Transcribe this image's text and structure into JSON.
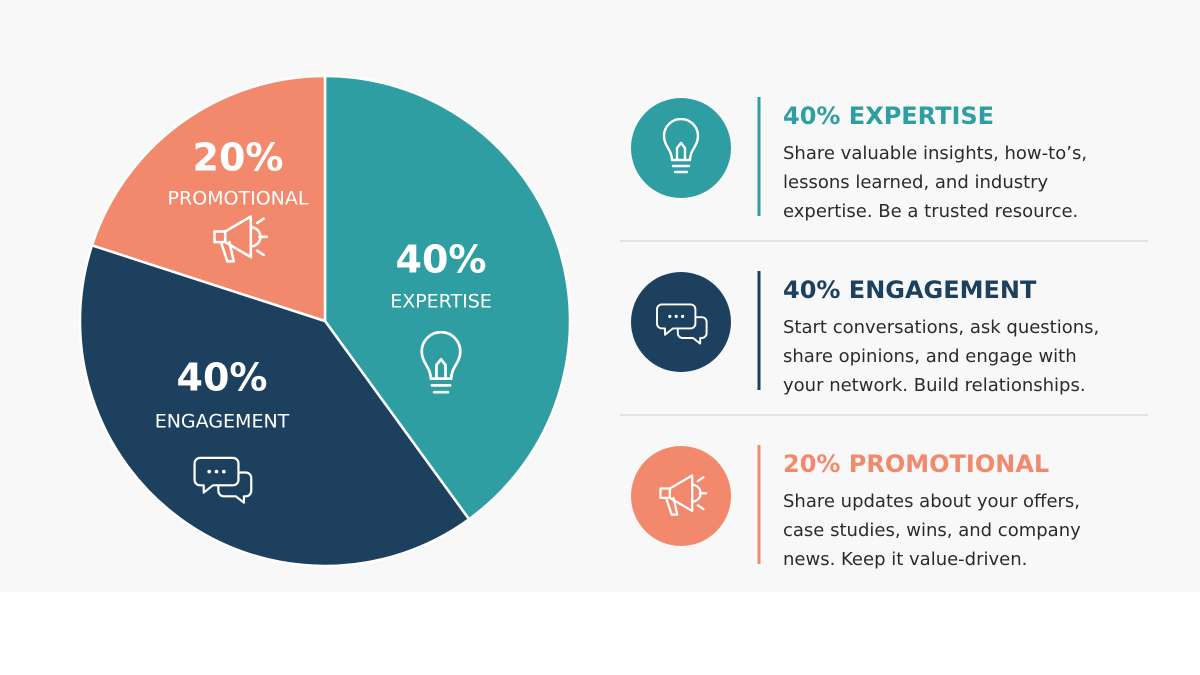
{
  "chart_data": {
    "type": "pie",
    "categories": [
      "EXPERTISE",
      "ENGAGEMENT",
      "PROMOTIONAL"
    ],
    "values": [
      40,
      40,
      20
    ],
    "value_labels": [
      "40%",
      "40%",
      "20%"
    ],
    "colors": [
      "#2f9ea2",
      "#1d405f",
      "#f3896c"
    ],
    "start_angle": 0,
    "direction": "clockwise",
    "cards": [
      {
        "title": "40% EXPERTISE",
        "lines": [
          "Share valuable insights, how-to’s,",
          "lessons learned, and industry",
          "expertise. Be a trusted resource."
        ]
      },
      {
        "title": "40% ENGAGEMENT",
        "lines": [
          "Start conversations, ask questions,",
          "share opinions, and engage with",
          "your network. Build relationships."
        ]
      },
      {
        "title": "20% PROMOTIONAL",
        "lines": [
          "Share updates about your offers,",
          "case studies, wins, and company",
          "news. Keep it value-driven."
        ]
      }
    ]
  }
}
